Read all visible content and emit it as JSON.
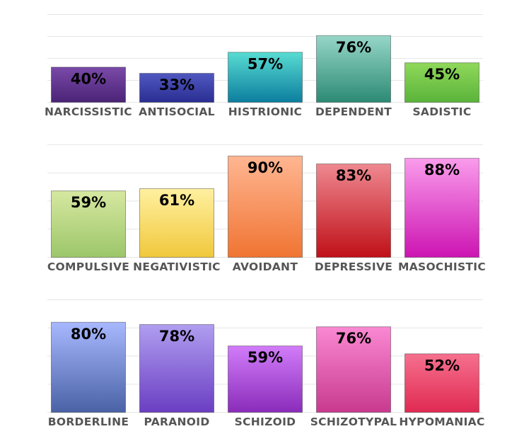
{
  "chart_data": [
    {
      "type": "bar",
      "categories": [
        "NARCISSISTIC",
        "ANTISOCIAL",
        "HISTRIONIC",
        "DEPENDENT",
        "SADISTIC"
      ],
      "values": [
        40,
        33,
        57,
        76,
        45
      ],
      "value_labels": [
        "40%",
        "33%",
        "57%",
        "76%",
        "45%"
      ],
      "ylim": [
        0,
        100
      ],
      "grid": true,
      "colors": [
        [
          "#7a4aa8",
          "#4a2376"
        ],
        [
          "#5058c0",
          "#2a2e92"
        ],
        [
          "#58dcd2",
          "#0c7e9e"
        ],
        [
          "#96d6c8",
          "#2c8a74"
        ],
        [
          "#90d85a",
          "#5ab43a"
        ]
      ]
    },
    {
      "type": "bar",
      "categories": [
        "COMPULSIVE",
        "NEGATIVISTIC",
        "AVOIDANT",
        "DEPRESSIVE",
        "MASOCHISTIC"
      ],
      "values": [
        59,
        61,
        90,
        83,
        88
      ],
      "value_labels": [
        "59%",
        "61%",
        "90%",
        "83%",
        "88%"
      ],
      "ylim": [
        0,
        100
      ],
      "grid": true,
      "colors": [
        [
          "#d6e8a0",
          "#9cc66a"
        ],
        [
          "#fff0a0",
          "#f0c83c"
        ],
        [
          "#ffb692",
          "#f07432"
        ],
        [
          "#ee8890",
          "#c01018"
        ],
        [
          "#fa9cec",
          "#cc14b2"
        ]
      ]
    },
    {
      "type": "bar",
      "categories": [
        "BORDERLINE",
        "PARANOID",
        "SCHIZOID",
        "SCHIZOTYPAL",
        "HYPOMANIAC"
      ],
      "values": [
        80,
        78,
        59,
        76,
        52
      ],
      "value_labels": [
        "80%",
        "78%",
        "59%",
        "76%",
        "52%"
      ],
      "ylim": [
        0,
        100
      ],
      "grid": true,
      "colors": [
        [
          "#a8b8ff",
          "#4a62a6"
        ],
        [
          "#b09ef0",
          "#6a3ec2"
        ],
        [
          "#d27cfa",
          "#8a2cba"
        ],
        [
          "#fa88d2",
          "#c83a8e"
        ],
        [
          "#f6708e",
          "#e02a52"
        ]
      ]
    }
  ]
}
